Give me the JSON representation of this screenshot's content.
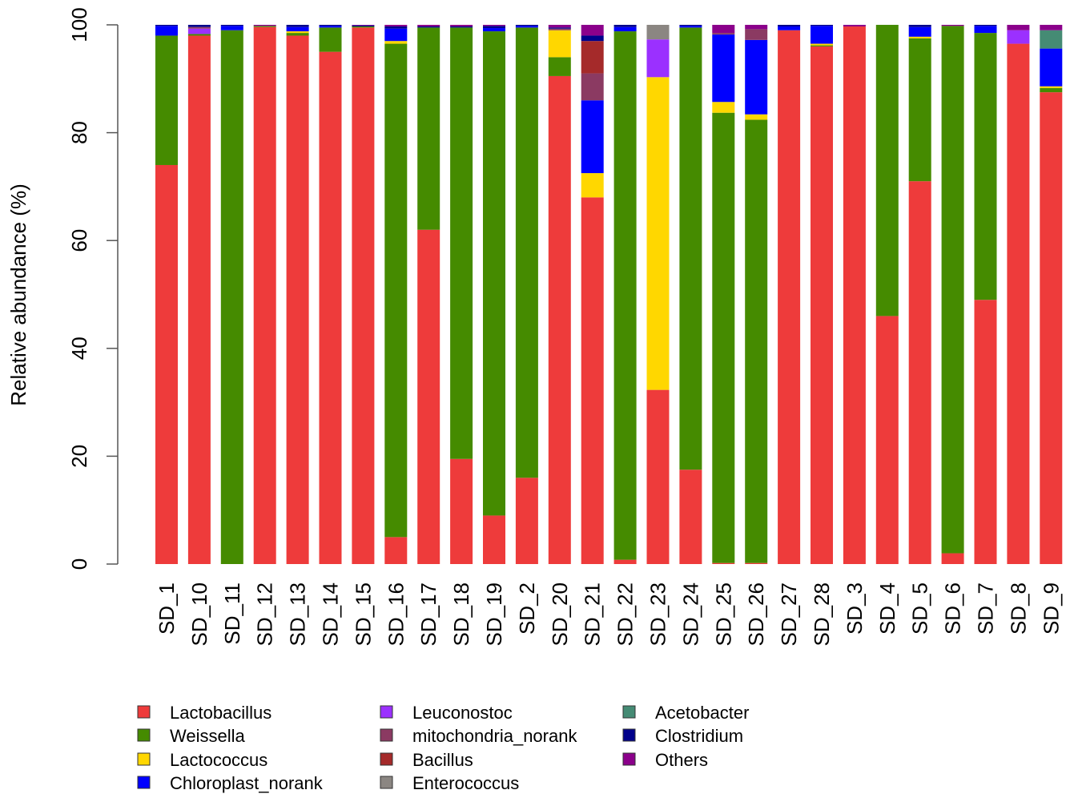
{
  "chart_data": {
    "type": "bar",
    "stacked": true,
    "title": "",
    "xlabel": "",
    "ylabel": "Relative abundance (%)",
    "ylim": [
      0,
      100
    ],
    "yticks": [
      0,
      20,
      40,
      60,
      80,
      100
    ],
    "grid": false,
    "legend_position": "bottom",
    "categories": [
      "SD_1",
      "SD_10",
      "SD_11",
      "SD_12",
      "SD_13",
      "SD_14",
      "SD_15",
      "SD_16",
      "SD_17",
      "SD_18",
      "SD_19",
      "SD_2",
      "SD_20",
      "SD_21",
      "SD_22",
      "SD_23",
      "SD_24",
      "SD_25",
      "SD_26",
      "SD_27",
      "SD_28",
      "SD_3",
      "SD_4",
      "SD_5",
      "SD_6",
      "SD_7",
      "SD_8",
      "SD_9"
    ],
    "series": [
      {
        "name": "Lactobacillus",
        "color": "#EE3B3B",
        "values": [
          74.0,
          98.0,
          0.0,
          99.6,
          98.0,
          95.0,
          99.5,
          5.0,
          62.0,
          19.5,
          9.0,
          16.0,
          90.5,
          68.0,
          0.8,
          32.3,
          17.5,
          0.2,
          0.2,
          99.0,
          96.0,
          99.7,
          46.0,
          71.0,
          2.0,
          49.0,
          96.5,
          87.5
        ]
      },
      {
        "name": "Weissella",
        "color": "#458B00",
        "values": [
          24.0,
          0.3,
          99.0,
          0.2,
          0.5,
          4.5,
          0.2,
          91.5,
          37.5,
          80.0,
          89.8,
          83.5,
          3.5,
          0.0,
          98.0,
          0.0,
          82.0,
          83.5,
          82.2,
          0.0,
          0.2,
          0.0,
          54.0,
          26.5,
          97.8,
          49.5,
          0.0,
          0.8
        ]
      },
      {
        "name": "Lactococcus",
        "color": "#FFD700",
        "values": [
          0.0,
          0.0,
          0.0,
          0.0,
          0.3,
          0.0,
          0.0,
          0.5,
          0.0,
          0.0,
          0.0,
          0.0,
          5.0,
          4.5,
          0.0,
          58.0,
          0.0,
          2.0,
          1.0,
          0.0,
          0.3,
          0.0,
          0.0,
          0.3,
          0.0,
          0.0,
          0.0,
          0.3
        ]
      },
      {
        "name": "Chloroplast_norank",
        "color": "#0000FF",
        "values": [
          1.8,
          0.0,
          0.8,
          0.0,
          0.8,
          0.3,
          0.0,
          2.3,
          0.0,
          0.0,
          0.6,
          0.3,
          0.0,
          13.5,
          0.8,
          0.0,
          0.3,
          12.5,
          13.8,
          0.7,
          3.3,
          0.0,
          0.0,
          1.8,
          0.0,
          1.3,
          0.0,
          7.0
        ]
      },
      {
        "name": "Leuconostoc",
        "color": "#9B30FF",
        "values": [
          0.0,
          1.0,
          0.0,
          0.0,
          0.0,
          0.0,
          0.0,
          0.0,
          0.0,
          0.0,
          0.0,
          0.0,
          0.0,
          0.0,
          0.0,
          7.0,
          0.0,
          0.0,
          0.0,
          0.0,
          0.0,
          0.0,
          0.0,
          0.0,
          0.0,
          0.0,
          2.5,
          0.0
        ]
      },
      {
        "name": "mitochondria_norank",
        "color": "#8B3A62",
        "values": [
          0.0,
          0.3,
          0.0,
          0.0,
          0.0,
          0.0,
          0.0,
          0.0,
          0.0,
          0.0,
          0.0,
          0.0,
          0.3,
          5.0,
          0.0,
          0.0,
          0.0,
          0.3,
          2.0,
          0.0,
          0.0,
          0.0,
          0.0,
          0.0,
          0.0,
          0.0,
          0.0,
          0.0
        ]
      },
      {
        "name": "Bacillus",
        "color": "#A52A2A",
        "values": [
          0.0,
          0.0,
          0.0,
          0.0,
          0.0,
          0.0,
          0.0,
          0.0,
          0.0,
          0.0,
          0.0,
          0.0,
          0.0,
          6.0,
          0.0,
          0.0,
          0.0,
          0.0,
          0.0,
          0.0,
          0.0,
          0.0,
          0.0,
          0.0,
          0.0,
          0.0,
          0.0,
          0.0
        ]
      },
      {
        "name": "Enterococcus",
        "color": "#8B8682",
        "values": [
          0.0,
          0.0,
          0.0,
          0.0,
          0.0,
          0.0,
          0.0,
          0.0,
          0.0,
          0.0,
          0.0,
          0.0,
          0.0,
          0.0,
          0.0,
          2.7,
          0.0,
          0.0,
          0.0,
          0.0,
          0.0,
          0.0,
          0.0,
          0.0,
          0.0,
          0.0,
          0.0,
          0.0
        ]
      },
      {
        "name": "Acetobacter",
        "color": "#458B74",
        "values": [
          0.0,
          0.0,
          0.0,
          0.0,
          0.0,
          0.0,
          0.0,
          0.0,
          0.0,
          0.0,
          0.0,
          0.0,
          0.0,
          0.0,
          0.0,
          0.0,
          0.0,
          0.0,
          0.0,
          0.0,
          0.0,
          0.0,
          0.0,
          0.0,
          0.0,
          0.0,
          0.0,
          3.4
        ]
      },
      {
        "name": "Clostridium",
        "color": "#00008B",
        "values": [
          0.2,
          0.4,
          0.2,
          0.0,
          0.4,
          0.2,
          0.2,
          0.4,
          0.2,
          0.2,
          0.4,
          0.2,
          0.2,
          1.0,
          0.4,
          0.0,
          0.2,
          0.0,
          0.0,
          0.3,
          0.2,
          0.0,
          0.0,
          0.4,
          0.0,
          0.2,
          0.0,
          0.0
        ]
      },
      {
        "name": "Others",
        "color": "#8B008B",
        "values": [
          0.0,
          0.0,
          0.0,
          0.2,
          0.0,
          0.0,
          0.1,
          0.3,
          0.3,
          0.3,
          0.2,
          0.0,
          0.5,
          2.0,
          0.0,
          0.0,
          0.0,
          1.5,
          0.8,
          0.0,
          0.0,
          0.3,
          0.0,
          0.0,
          0.2,
          0.0,
          1.0,
          1.0
        ]
      }
    ]
  }
}
